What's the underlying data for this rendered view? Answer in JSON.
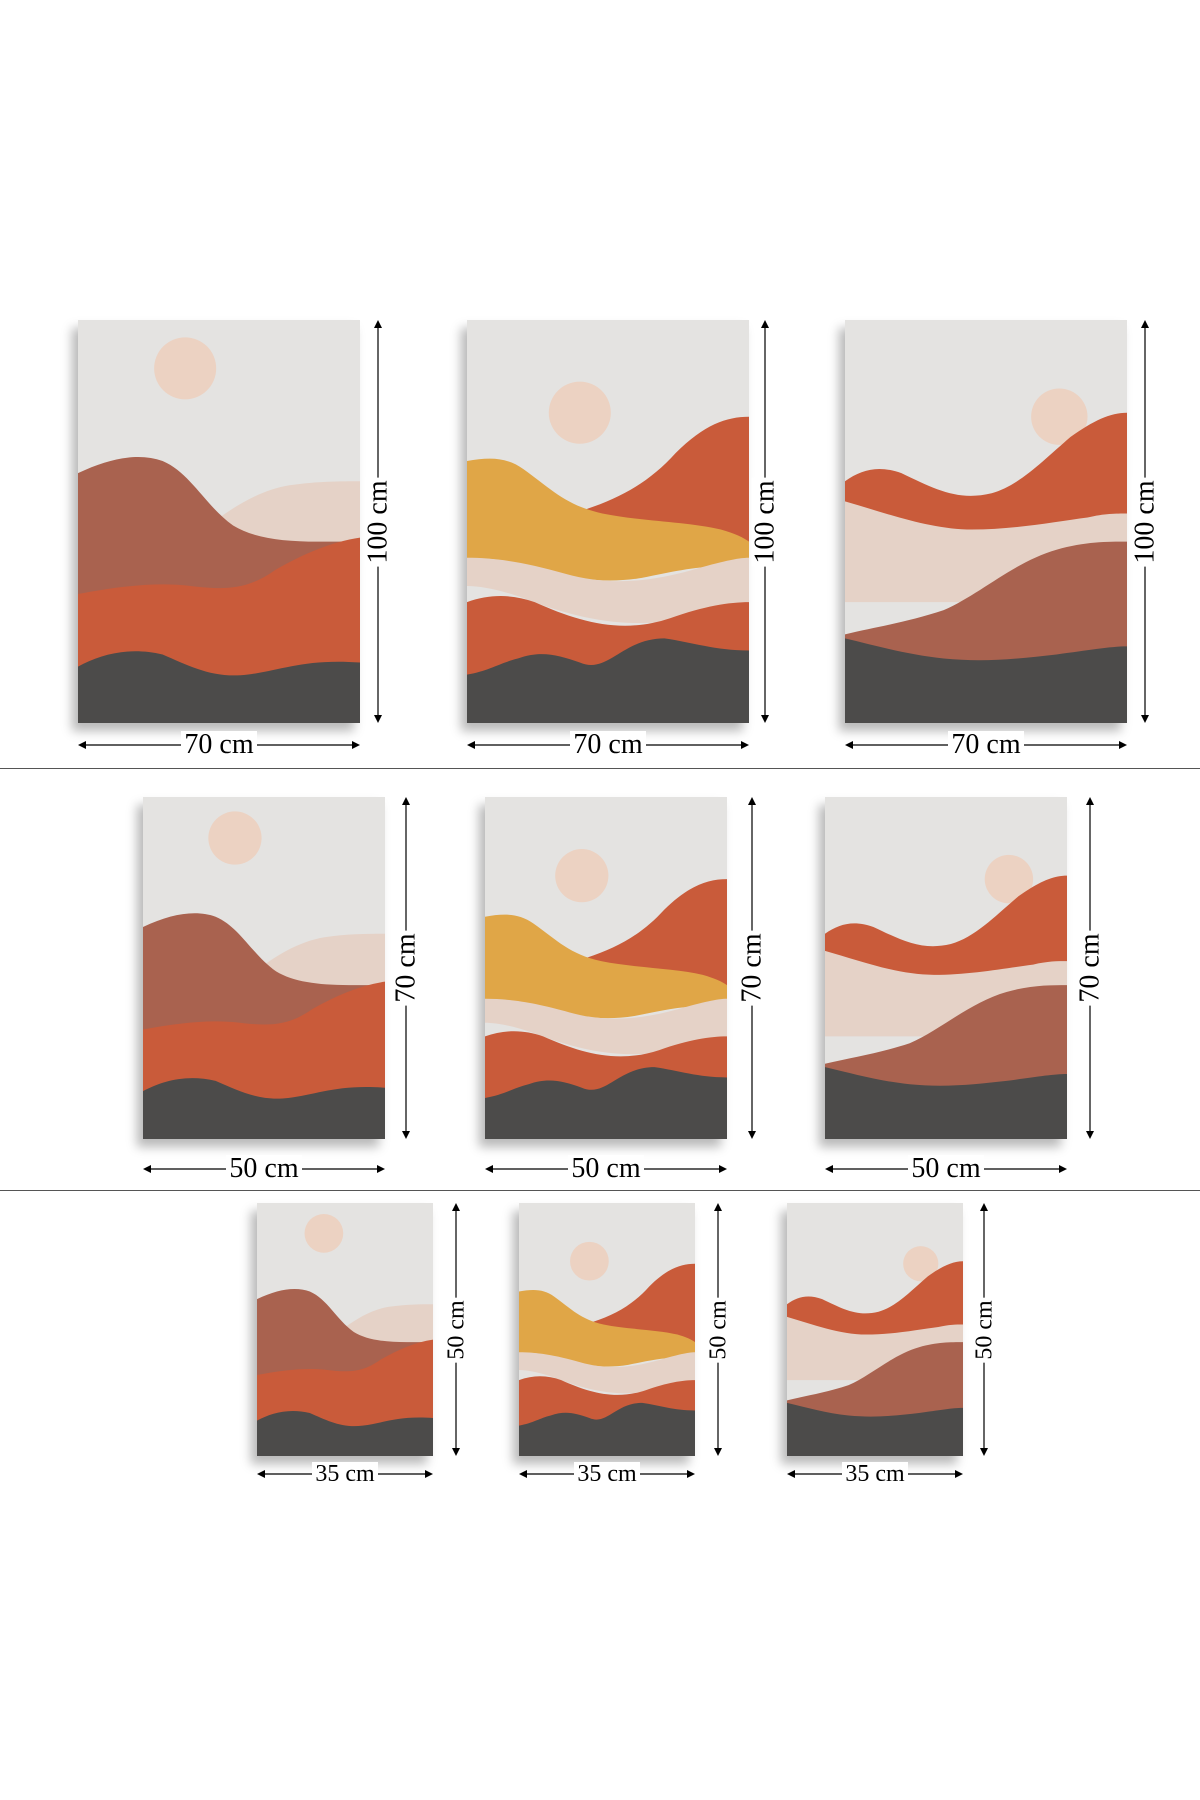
{
  "colors": {
    "sky": "#e4e3e1",
    "sun": "#ecd2c2",
    "rust": "#c95b3a",
    "terracotta": "#a9624f",
    "blush": "#e5d2c7",
    "mustard": "#e0a647",
    "charcoal": "#4c4b4a"
  },
  "rows": [
    {
      "width_label": "70 cm",
      "height_label": "100 cm",
      "prints": [
        {
          "design": "design-a"
        },
        {
          "design": "design-b"
        },
        {
          "design": "design-c"
        }
      ]
    },
    {
      "width_label": "50 cm",
      "height_label": "70 cm",
      "prints": [
        {
          "design": "design-a"
        },
        {
          "design": "design-b"
        },
        {
          "design": "design-c"
        }
      ]
    },
    {
      "width_label": "35 cm",
      "height_label": "50 cm",
      "prints": [
        {
          "design": "design-a"
        },
        {
          "design": "design-b"
        },
        {
          "design": "design-c"
        }
      ]
    }
  ]
}
